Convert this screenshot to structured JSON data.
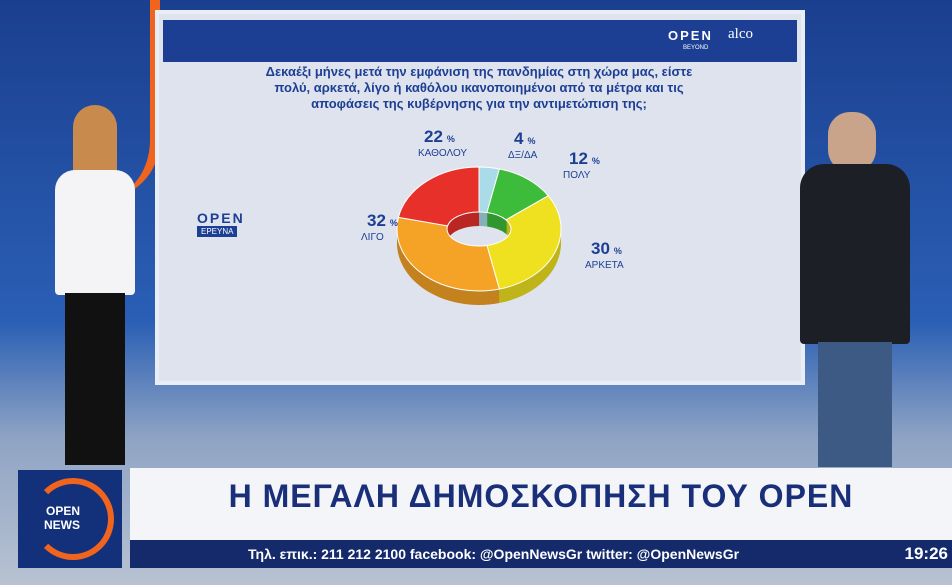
{
  "chart_data": {
    "type": "pie",
    "donut": true,
    "title": "Δεκαέξι μήνες μετά την εμφάνιση της πανδημίας στη χώρα μας, είστε πολύ, αρκετά, λίγο ή καθόλου ικανοποιημένοι από τα μέτρα και τις αποφάσεις της κυβέρνησης για την αντιμετώπιση της;",
    "categories": [
      "ΔΞ/ΔΑ",
      "ΠΟΛΥ",
      "ΑΡΚΕΤΑ",
      "ΛΙΓΟ",
      "ΚΑΘΟΛΟΥ"
    ],
    "values": [
      4,
      12,
      30,
      32,
      22
    ],
    "colors": [
      "#a9dbe8",
      "#3dbb3a",
      "#efe11f",
      "#f4a326",
      "#e8302a"
    ],
    "percent_sign": "%"
  },
  "screen": {
    "brand": "OPEN",
    "brand_sub": "BEYOND",
    "partner": "alco",
    "survey_logo": "OPEN",
    "survey_logo_sub": "ΕΡΕΥΝΑ"
  },
  "banner": {
    "headline": "Η ΜΕΓΑΛΗ ΔΗΜΟΣΚΟΠΗΣΗ ΤΟΥ OPEN",
    "ticker": "Τηλ. επικ.: 211 212 2100 facebook: @OpenNewsGr twitter: @OpenNewsGr",
    "time": "19:26",
    "logo_top": "OPEN",
    "logo_bottom": "NEWS"
  }
}
